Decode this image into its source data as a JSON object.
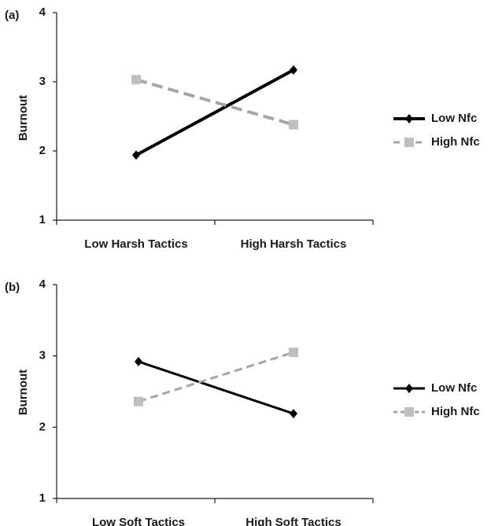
{
  "chart_data": [
    {
      "type": "line",
      "panel_label": "(a)",
      "categories": [
        "Low Harsh Tactics",
        "High Harsh Tactics"
      ],
      "ylabel": "Burnout",
      "ylim": [
        1,
        4
      ],
      "yticks": [
        "1",
        "2",
        "3",
        "4"
      ],
      "grid": false,
      "legend_position": "right",
      "series": [
        {
          "name": "Low Nfc",
          "values": [
            1.94,
            3.17
          ],
          "color": "#000000",
          "dash": "solid",
          "marker": "diamond"
        },
        {
          "name": "High Nfc",
          "values": [
            3.03,
            2.38
          ],
          "color": "#a6a6a6",
          "dash": "dashed",
          "marker": "square"
        }
      ]
    },
    {
      "type": "line",
      "panel_label": "(b)",
      "categories": [
        "Low Soft Tactics",
        "High Soft Tactics"
      ],
      "ylabel": "Burnout",
      "ylim": [
        1,
        4
      ],
      "yticks": [
        "1",
        "2",
        "3",
        "4"
      ],
      "grid": false,
      "legend_position": "right",
      "series": [
        {
          "name": "Low Nfc",
          "values": [
            2.92,
            2.19
          ],
          "color": "#000000",
          "dash": "solid",
          "marker": "diamond"
        },
        {
          "name": "High Nfc",
          "values": [
            2.36,
            3.05
          ],
          "color": "#a6a6a6",
          "dash": "dashed",
          "marker": "square"
        }
      ]
    }
  ]
}
